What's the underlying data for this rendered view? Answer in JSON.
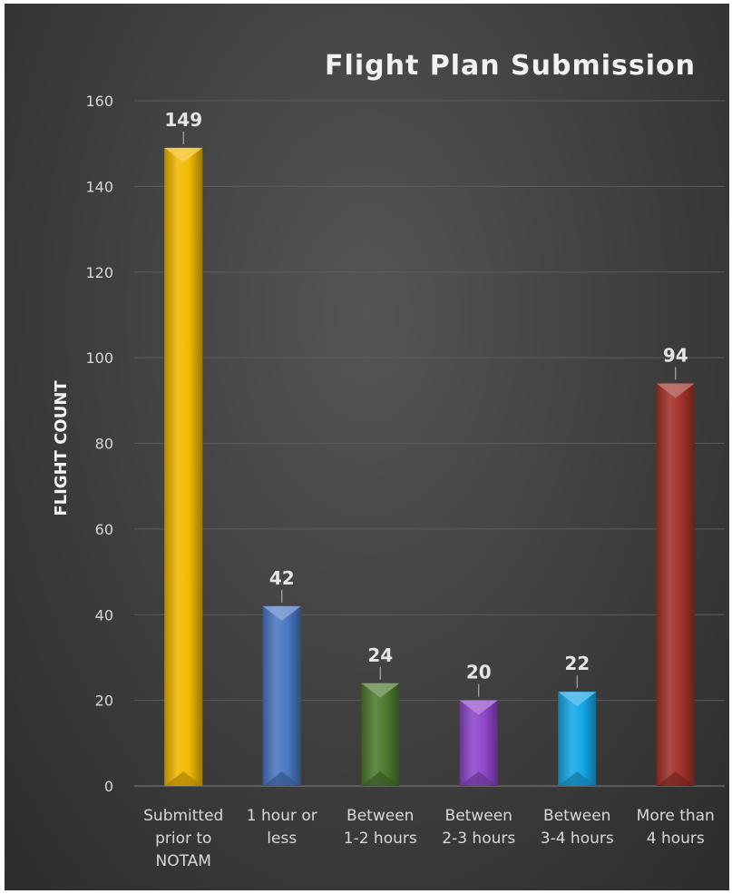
{
  "chart_data": {
    "type": "bar",
    "title": "Flight Plan Submission",
    "xlabel": "",
    "ylabel": "FLIGHT COUNT",
    "categories": [
      [
        "Submitted",
        "prior to",
        "NOTAM"
      ],
      [
        "1 hour or",
        "less"
      ],
      [
        "Between",
        "1-2 hours"
      ],
      [
        "Between",
        "2-3 hours"
      ],
      [
        "Between",
        "3-4 hours"
      ],
      [
        "More than",
        "4 hours"
      ]
    ],
    "values": [
      149,
      42,
      24,
      20,
      22,
      94
    ],
    "data_labels": [
      "149",
      "42",
      "24",
      "20",
      "22",
      "94"
    ],
    "colors": [
      "#f2b800",
      "#4a78c2",
      "#4d7a2e",
      "#8f47c9",
      "#16a8e6",
      "#a23229"
    ],
    "ylim": [
      0,
      160
    ],
    "yticks": [
      0,
      20,
      40,
      60,
      80,
      100,
      120,
      140,
      160
    ],
    "grid": true,
    "background": "#3a3a3a"
  }
}
